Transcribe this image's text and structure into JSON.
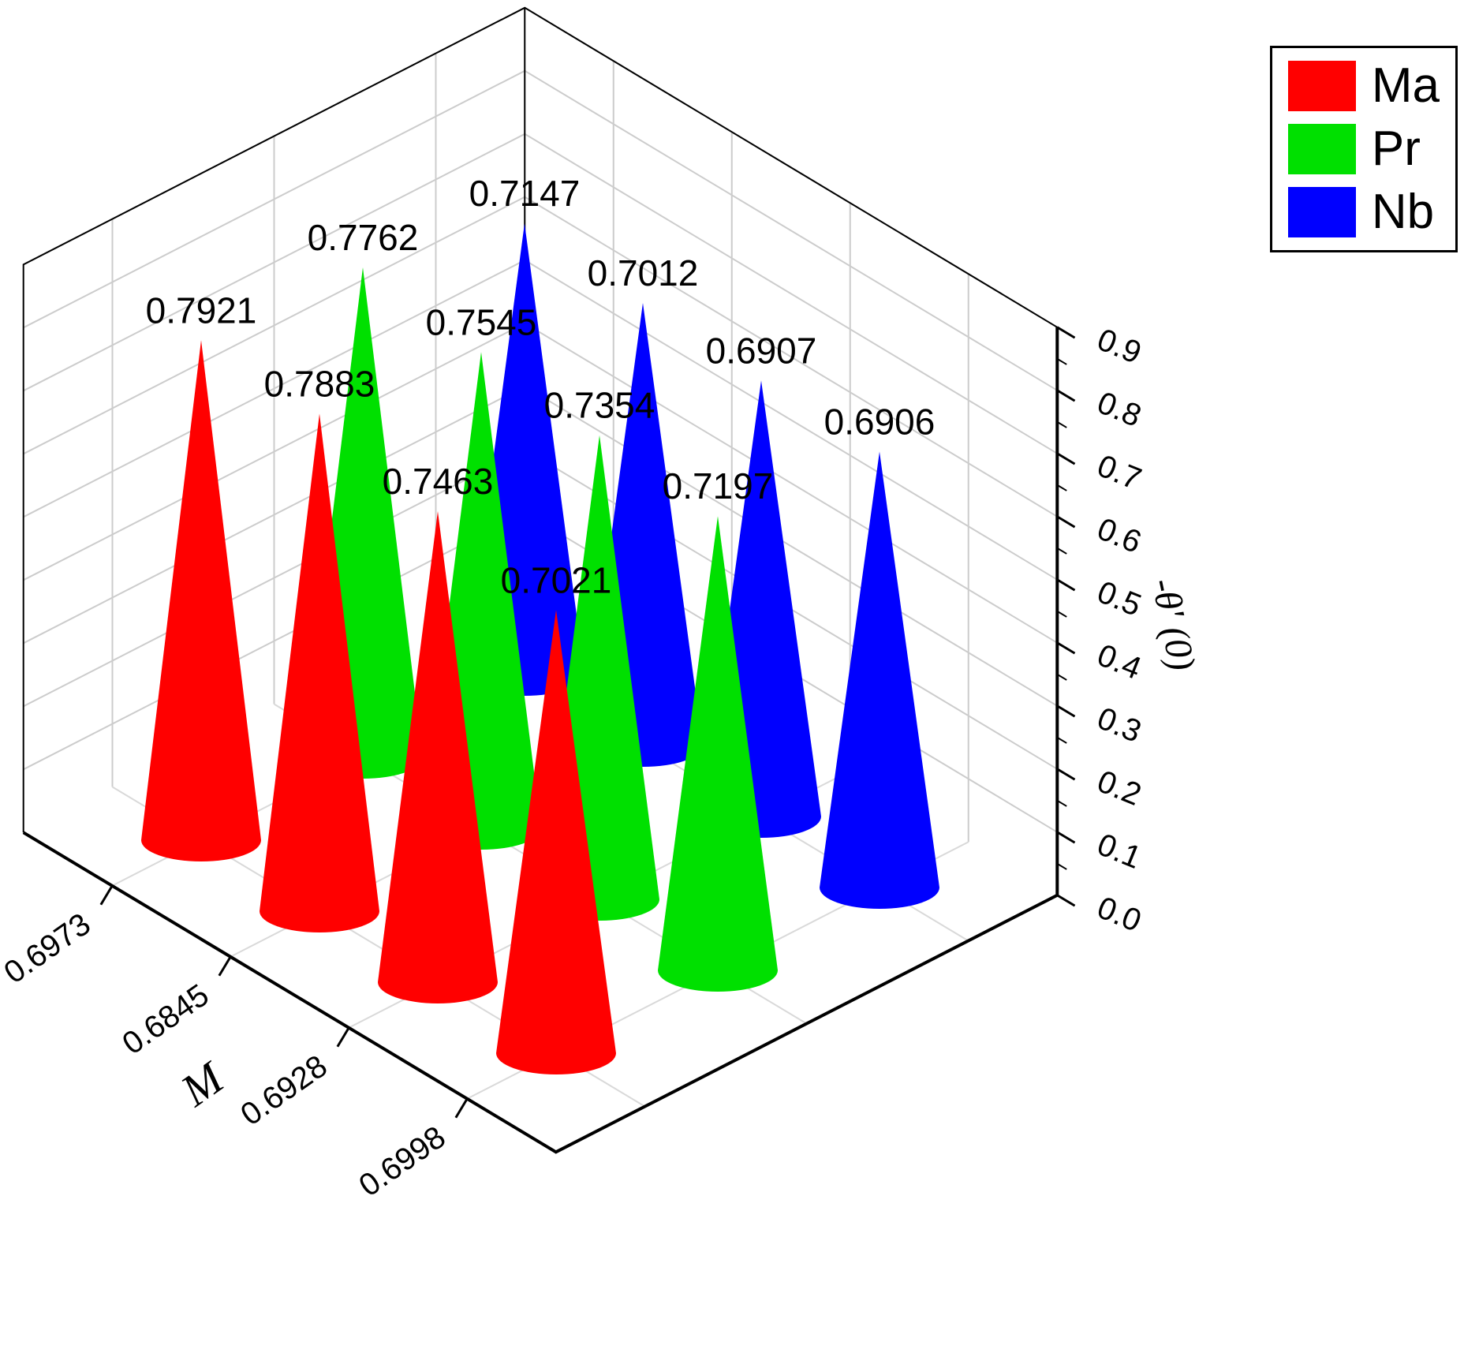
{
  "chart_data": {
    "type": "bar",
    "subtype": "3d-cone",
    "title": "",
    "xlabel": "M",
    "ylabel": "",
    "zlabel": "-θ' (0)",
    "categories": [
      "0.6973",
      "0.6845",
      "0.6928",
      "0.6998"
    ],
    "zticks": [
      "0.0",
      "0.1",
      "0.2",
      "0.3",
      "0.4",
      "0.5",
      "0.6",
      "0.7",
      "0.8",
      "0.9"
    ],
    "zlim": [
      0,
      0.9
    ],
    "grid": true,
    "legend_position": "top-right",
    "value_label_decimals": 4,
    "series": [
      {
        "name": "Ma",
        "color": "#FF0000",
        "values": [
          0.7921,
          0.7883,
          0.7463,
          0.7021
        ]
      },
      {
        "name": "Pr",
        "color": "#00E000",
        "values": [
          0.7762,
          0.7545,
          0.7354,
          0.7197
        ]
      },
      {
        "name": "Nb",
        "color": "#0000FF",
        "values": [
          0.7147,
          0.7012,
          0.6907,
          0.6906
        ]
      }
    ]
  },
  "colors": {
    "background": "#ffffff",
    "grid": "#cccccc",
    "floor_grid": "#d9d9d9",
    "axis": "#000000",
    "text": "#000000"
  }
}
